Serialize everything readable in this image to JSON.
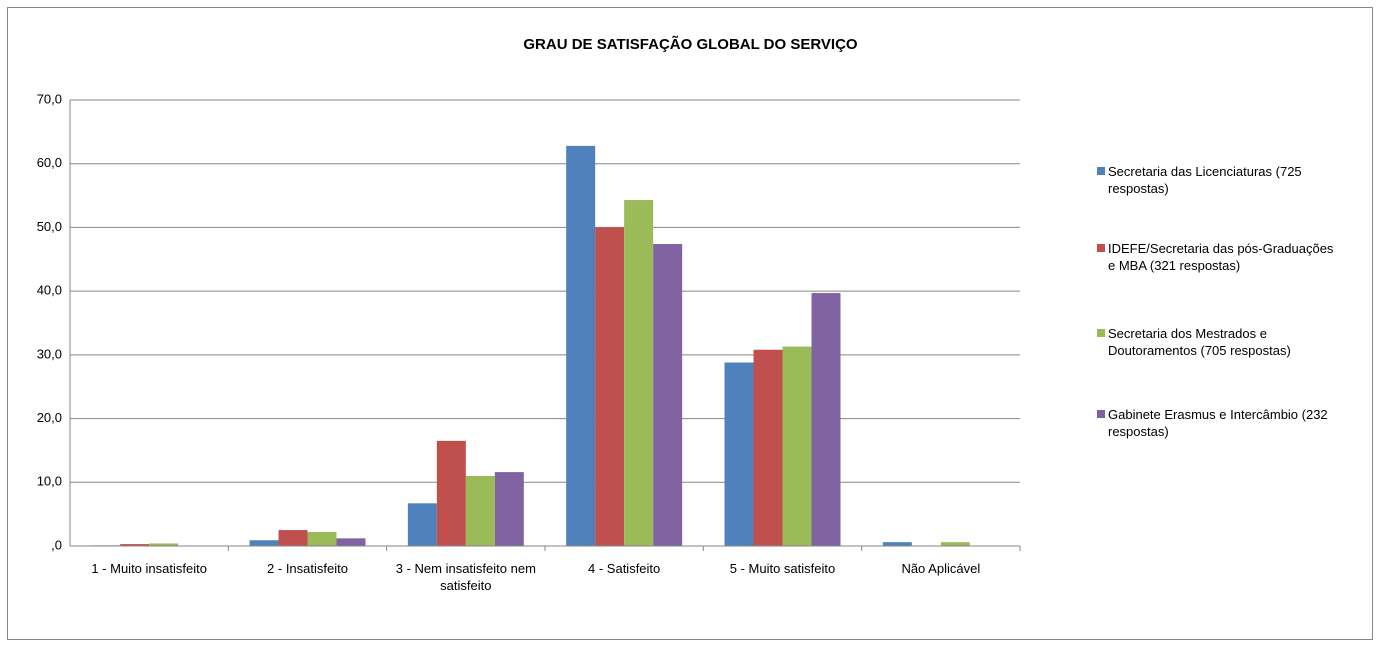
{
  "chart_data": {
    "type": "bar",
    "title": "GRAU DE SATISFAÇÃO GLOBAL DO SERVIÇO",
    "categories": [
      "1 - Muito insatisfeito",
      "2 - Insatisfeito",
      "3 - Nem insatisfeito nem satisfeito",
      "4 - Satisfeito",
      "5 - Muito satisfeito",
      "Não Aplicável"
    ],
    "series": [
      {
        "name": "Secretaria das Licenciaturas (725 respostas)",
        "color": "#4f81bd",
        "values": [
          0.1,
          0.9,
          6.7,
          62.8,
          28.8,
          0.6
        ]
      },
      {
        "name": "IDEFE/Secretaria das pós-Graduações e MBA (321 respostas)",
        "color": "#c0504d",
        "values": [
          0.3,
          2.5,
          16.5,
          50.0,
          30.8,
          0
        ]
      },
      {
        "name": "Secretaria dos Mestrados e Doutoramentos (705 respostas)",
        "color": "#9bbb59",
        "values": [
          0.4,
          2.2,
          11.0,
          54.3,
          31.3,
          0.6
        ]
      },
      {
        "name": "Gabinete Erasmus e Intercâmbio (232 respostas)",
        "color": "#8064a2",
        "values": [
          0,
          1.2,
          11.6,
          47.4,
          39.7,
          0
        ]
      }
    ],
    "ylim": [
      0,
      70
    ],
    "yticks": [
      {
        "value": 0,
        "label": ",0"
      },
      {
        "value": 10,
        "label": "10,0"
      },
      {
        "value": 20,
        "label": "20,0"
      },
      {
        "value": 30,
        "label": "30,0"
      },
      {
        "value": 40,
        "label": "40,0"
      },
      {
        "value": 50,
        "label": "50,0"
      },
      {
        "value": 60,
        "label": "60,0"
      },
      {
        "value": 70,
        "label": "70,0"
      }
    ],
    "grid": true,
    "legend": "right"
  }
}
